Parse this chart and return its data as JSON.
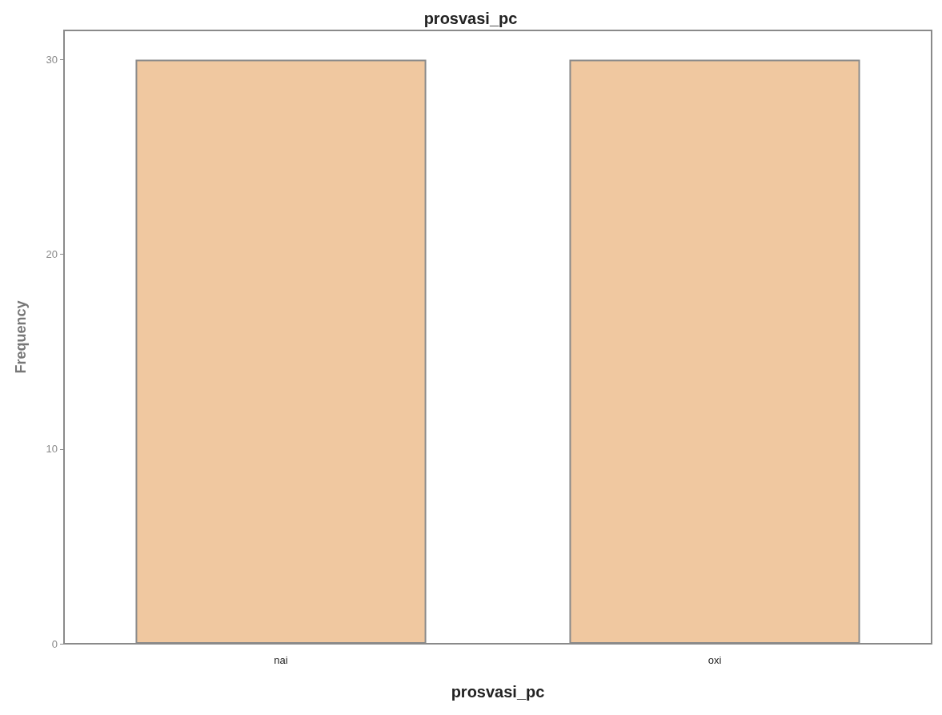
{
  "chart_data": {
    "type": "bar",
    "title": "prosvasi_pc",
    "xlabel": "prosvasi_pc",
    "ylabel": "Frequency",
    "categories": [
      "nai",
      "oxi"
    ],
    "values": [
      30,
      30
    ],
    "color": "#f0c8a0",
    "ylim": [
      0,
      31.5
    ],
    "yticks": [
      0,
      10,
      20,
      30
    ]
  }
}
